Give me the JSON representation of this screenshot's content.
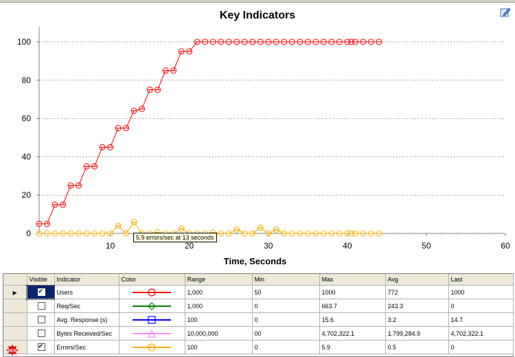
{
  "chart_data": {
    "type": "line",
    "title": "Key Indicators",
    "xlabel": "Time, Seconds",
    "ylabel": "",
    "xlim": [
      1,
      60
    ],
    "ylim": [
      0,
      105
    ],
    "xticks": [
      10,
      20,
      30,
      40,
      50,
      60
    ],
    "yticks": [
      0,
      20,
      40,
      60,
      80,
      100
    ],
    "grid": "horizontal dotted",
    "series": [
      {
        "name": "Users",
        "color": "#ff0000",
        "points": [
          [
            1,
            5
          ],
          [
            2,
            5
          ],
          [
            3,
            15
          ],
          [
            4,
            15
          ],
          [
            5,
            25
          ],
          [
            6,
            25
          ],
          [
            7,
            35
          ],
          [
            8,
            35
          ],
          [
            9,
            45
          ],
          [
            10,
            45
          ],
          [
            11,
            55
          ],
          [
            12,
            55
          ],
          [
            13,
            64
          ],
          [
            14,
            65
          ],
          [
            15,
            75
          ],
          [
            16,
            75
          ],
          [
            17,
            85
          ],
          [
            18,
            85
          ],
          [
            19,
            95
          ],
          [
            20,
            95
          ],
          [
            21,
            100
          ],
          [
            22,
            100
          ],
          [
            23,
            100
          ],
          [
            24,
            100
          ],
          [
            25,
            100
          ],
          [
            26,
            100
          ],
          [
            27,
            100
          ],
          [
            28,
            100
          ],
          [
            29,
            100
          ],
          [
            30,
            100
          ],
          [
            31,
            100
          ],
          [
            32,
            100
          ],
          [
            33,
            100
          ],
          [
            34,
            100
          ],
          [
            35,
            100
          ],
          [
            36,
            100
          ],
          [
            37,
            100
          ],
          [
            38,
            100
          ],
          [
            39,
            100
          ],
          [
            40,
            100
          ],
          [
            40.5,
            100
          ],
          [
            41,
            100
          ],
          [
            42,
            100
          ],
          [
            43,
            100
          ],
          [
            44,
            100
          ]
        ]
      },
      {
        "name": "Errors/Sec",
        "color": "#ffaa00",
        "points": [
          [
            1,
            0
          ],
          [
            2,
            0
          ],
          [
            3,
            0
          ],
          [
            4,
            0
          ],
          [
            5,
            0
          ],
          [
            6,
            0
          ],
          [
            7,
            0
          ],
          [
            8,
            0
          ],
          [
            9,
            0
          ],
          [
            10,
            0
          ],
          [
            11,
            4
          ],
          [
            12,
            0
          ],
          [
            13,
            5.9
          ],
          [
            14,
            0
          ],
          [
            15,
            0
          ],
          [
            16,
            0.5
          ],
          [
            17,
            0
          ],
          [
            18,
            0
          ],
          [
            19,
            2.5
          ],
          [
            20,
            0
          ],
          [
            21,
            0
          ],
          [
            22,
            0
          ],
          [
            23,
            0.5
          ],
          [
            24,
            0
          ],
          [
            25,
            0
          ],
          [
            26,
            2
          ],
          [
            27,
            0
          ],
          [
            28,
            0
          ],
          [
            29,
            3
          ],
          [
            30,
            0
          ],
          [
            31,
            2
          ],
          [
            32,
            0
          ],
          [
            33,
            0
          ],
          [
            34,
            0
          ],
          [
            35,
            0
          ],
          [
            36,
            0
          ],
          [
            37,
            0
          ],
          [
            38,
            0
          ],
          [
            39,
            0
          ],
          [
            40,
            0
          ],
          [
            40.5,
            0
          ],
          [
            41,
            0
          ],
          [
            42,
            0
          ],
          [
            43,
            0
          ],
          [
            44,
            0
          ]
        ]
      }
    ],
    "tooltip": "5.9 errors/sec at 13 seconds"
  },
  "grid": {
    "headers": [
      "Visible",
      "Indicator",
      "Color",
      "Range",
      "Min",
      "Max",
      "Avg",
      "Last"
    ],
    "rows": [
      {
        "visible": true,
        "indicator": "Users",
        "color": "#ff0000",
        "marker": "circle",
        "range": "1,000",
        "min": "50",
        "max": "1000",
        "avg": "772",
        "last": "1000",
        "current": true
      },
      {
        "visible": false,
        "indicator": "Req/Sec",
        "color": "#008000",
        "marker": "diamond",
        "range": "1,000",
        "min": "0",
        "max": "663.7",
        "avg": "243.3",
        "last": "0",
        "current": false
      },
      {
        "visible": false,
        "indicator": "Avg. Response (s)",
        "color": "#0000ff",
        "marker": "square",
        "range": "100",
        "min": "0",
        "max": "15.6",
        "avg": "3.2",
        "last": "14.7",
        "current": false
      },
      {
        "visible": false,
        "indicator": "Bytes Received/Sec",
        "color": "#ff88ff",
        "marker": "triangle",
        "range": "10,000,000",
        "min": "00",
        "max": "4,702,322.1",
        "avg": "1,799,284.9",
        "last": "4,702,322.1",
        "current": false
      },
      {
        "visible": true,
        "indicator": "Errors/Sec",
        "color": "#ffaa00",
        "marker": "circle",
        "range": "100",
        "min": "0",
        "max": "5.9",
        "avg": "0.5",
        "last": "0",
        "current": false
      }
    ]
  },
  "icons": {
    "edit": "edit-icon",
    "new_row": "new-badge-icon",
    "row_pointer": "row-pointer-icon"
  }
}
